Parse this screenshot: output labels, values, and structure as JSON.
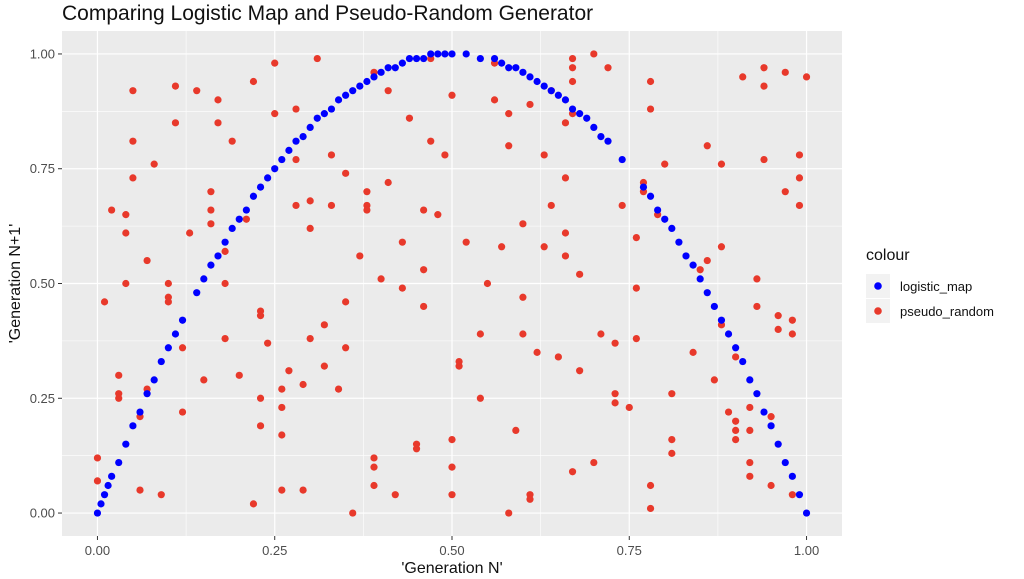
{
  "chart_data": {
    "type": "scatter",
    "title": "Comparing Logistic Map and Pseudo-Random Generator",
    "xlabel": "'Generation N'",
    "ylabel": "'Generation N+1'",
    "xlim": [
      -0.05,
      1.05
    ],
    "ylim": [
      -0.05,
      1.05
    ],
    "x_ticks": [
      0,
      0.25,
      0.5,
      0.75,
      1
    ],
    "x_tick_labels": [
      "0.00",
      "0.25",
      "0.50",
      "0.75",
      "1.00"
    ],
    "y_ticks": [
      0,
      0.25,
      0.5,
      0.75,
      1
    ],
    "y_tick_labels": [
      "0.00",
      "0.25",
      "0.50",
      "0.75",
      "1.00"
    ],
    "grid": true,
    "legend": {
      "title": "colour",
      "position": "right"
    },
    "series": [
      {
        "name": "logistic_map",
        "color": "#0000FF",
        "points": [
          [
            0.0,
            0.0
          ],
          [
            0.005,
            0.02
          ],
          [
            0.01,
            0.04
          ],
          [
            0.015,
            0.06
          ],
          [
            0.02,
            0.08
          ],
          [
            0.03,
            0.11
          ],
          [
            0.04,
            0.15
          ],
          [
            0.05,
            0.19
          ],
          [
            0.06,
            0.22
          ],
          [
            0.07,
            0.26
          ],
          [
            0.08,
            0.29
          ],
          [
            0.09,
            0.33
          ],
          [
            0.1,
            0.36
          ],
          [
            0.11,
            0.39
          ],
          [
            0.12,
            0.42
          ],
          [
            0.14,
            0.48
          ],
          [
            0.15,
            0.51
          ],
          [
            0.16,
            0.54
          ],
          [
            0.17,
            0.56
          ],
          [
            0.18,
            0.59
          ],
          [
            0.19,
            0.62
          ],
          [
            0.2,
            0.64
          ],
          [
            0.21,
            0.66
          ],
          [
            0.22,
            0.69
          ],
          [
            0.23,
            0.71
          ],
          [
            0.24,
            0.73
          ],
          [
            0.25,
            0.75
          ],
          [
            0.26,
            0.77
          ],
          [
            0.27,
            0.79
          ],
          [
            0.28,
            0.81
          ],
          [
            0.29,
            0.82
          ],
          [
            0.3,
            0.84
          ],
          [
            0.31,
            0.86
          ],
          [
            0.32,
            0.87
          ],
          [
            0.33,
            0.88
          ],
          [
            0.34,
            0.9
          ],
          [
            0.35,
            0.91
          ],
          [
            0.36,
            0.92
          ],
          [
            0.37,
            0.93
          ],
          [
            0.38,
            0.94
          ],
          [
            0.39,
            0.95
          ],
          [
            0.4,
            0.96
          ],
          [
            0.41,
            0.97
          ],
          [
            0.42,
            0.97
          ],
          [
            0.43,
            0.98
          ],
          [
            0.44,
            0.99
          ],
          [
            0.45,
            0.99
          ],
          [
            0.46,
            0.99
          ],
          [
            0.47,
            1.0
          ],
          [
            0.48,
            1.0
          ],
          [
            0.49,
            1.0
          ],
          [
            0.5,
            1.0
          ],
          [
            0.52,
            1.0
          ],
          [
            0.54,
            0.99
          ],
          [
            0.56,
            0.99
          ],
          [
            0.57,
            0.98
          ],
          [
            0.58,
            0.97
          ],
          [
            0.59,
            0.97
          ],
          [
            0.6,
            0.96
          ],
          [
            0.61,
            0.95
          ],
          [
            0.62,
            0.94
          ],
          [
            0.63,
            0.93
          ],
          [
            0.64,
            0.92
          ],
          [
            0.65,
            0.91
          ],
          [
            0.66,
            0.9
          ],
          [
            0.67,
            0.88
          ],
          [
            0.68,
            0.87
          ],
          [
            0.69,
            0.86
          ],
          [
            0.7,
            0.84
          ],
          [
            0.71,
            0.82
          ],
          [
            0.72,
            0.81
          ],
          [
            0.74,
            0.77
          ],
          [
            0.77,
            0.71
          ],
          [
            0.78,
            0.69
          ],
          [
            0.79,
            0.66
          ],
          [
            0.8,
            0.64
          ],
          [
            0.81,
            0.62
          ],
          [
            0.82,
            0.59
          ],
          [
            0.83,
            0.56
          ],
          [
            0.84,
            0.54
          ],
          [
            0.85,
            0.51
          ],
          [
            0.86,
            0.48
          ],
          [
            0.87,
            0.45
          ],
          [
            0.88,
            0.42
          ],
          [
            0.89,
            0.39
          ],
          [
            0.9,
            0.36
          ],
          [
            0.91,
            0.33
          ],
          [
            0.92,
            0.29
          ],
          [
            0.93,
            0.26
          ],
          [
            0.94,
            0.22
          ],
          [
            0.95,
            0.19
          ],
          [
            0.96,
            0.15
          ],
          [
            0.97,
            0.11
          ],
          [
            0.98,
            0.08
          ],
          [
            0.99,
            0.04
          ],
          [
            1.0,
            0.0
          ]
        ]
      },
      {
        "name": "pseudo_random",
        "color": "#E8392B",
        "points": [
          [
            0.0,
            0.12
          ],
          [
            0.0,
            0.07
          ],
          [
            0.01,
            0.46
          ],
          [
            0.02,
            0.66
          ],
          [
            0.03,
            0.26
          ],
          [
            0.03,
            0.3
          ],
          [
            0.03,
            0.25
          ],
          [
            0.04,
            0.5
          ],
          [
            0.04,
            0.61
          ],
          [
            0.04,
            0.65
          ],
          [
            0.05,
            0.73
          ],
          [
            0.05,
            0.81
          ],
          [
            0.05,
            0.92
          ],
          [
            0.06,
            0.05
          ],
          [
            0.06,
            0.21
          ],
          [
            0.07,
            0.27
          ],
          [
            0.07,
            0.55
          ],
          [
            0.08,
            0.76
          ],
          [
            0.09,
            0.04
          ],
          [
            0.1,
            0.5
          ],
          [
            0.1,
            0.47
          ],
          [
            0.1,
            0.46
          ],
          [
            0.11,
            0.85
          ],
          [
            0.11,
            0.93
          ],
          [
            0.12,
            0.22
          ],
          [
            0.12,
            0.36
          ],
          [
            0.13,
            0.61
          ],
          [
            0.14,
            0.92
          ],
          [
            0.15,
            0.29
          ],
          [
            0.16,
            0.63
          ],
          [
            0.16,
            0.66
          ],
          [
            0.16,
            0.7
          ],
          [
            0.17,
            0.85
          ],
          [
            0.17,
            0.9
          ],
          [
            0.18,
            0.38
          ],
          [
            0.18,
            0.57
          ],
          [
            0.18,
            0.5
          ],
          [
            0.19,
            0.81
          ],
          [
            0.2,
            0.3
          ],
          [
            0.21,
            0.64
          ],
          [
            0.22,
            0.94
          ],
          [
            0.22,
            0.02
          ],
          [
            0.23,
            0.43
          ],
          [
            0.23,
            0.44
          ],
          [
            0.23,
            0.25
          ],
          [
            0.23,
            0.19
          ],
          [
            0.24,
            0.37
          ],
          [
            0.25,
            0.87
          ],
          [
            0.25,
            0.98
          ],
          [
            0.26,
            0.05
          ],
          [
            0.26,
            0.17
          ],
          [
            0.26,
            0.23
          ],
          [
            0.26,
            0.27
          ],
          [
            0.27,
            0.31
          ],
          [
            0.28,
            0.67
          ],
          [
            0.28,
            0.77
          ],
          [
            0.28,
            0.88
          ],
          [
            0.29,
            0.05
          ],
          [
            0.29,
            0.28
          ],
          [
            0.3,
            0.38
          ],
          [
            0.3,
            0.62
          ],
          [
            0.3,
            0.68
          ],
          [
            0.31,
            0.99
          ],
          [
            0.32,
            0.32
          ],
          [
            0.32,
            0.41
          ],
          [
            0.33,
            0.67
          ],
          [
            0.33,
            0.78
          ],
          [
            0.34,
            0.27
          ],
          [
            0.35,
            0.36
          ],
          [
            0.35,
            0.46
          ],
          [
            0.35,
            0.74
          ],
          [
            0.36,
            0.0
          ],
          [
            0.37,
            0.56
          ],
          [
            0.38,
            0.67
          ],
          [
            0.38,
            0.7
          ],
          [
            0.38,
            0.66
          ],
          [
            0.39,
            0.06
          ],
          [
            0.39,
            0.1
          ],
          [
            0.39,
            0.12
          ],
          [
            0.39,
            0.96
          ],
          [
            0.4,
            0.51
          ],
          [
            0.41,
            0.72
          ],
          [
            0.41,
            0.92
          ],
          [
            0.42,
            0.04
          ],
          [
            0.43,
            0.49
          ],
          [
            0.43,
            0.59
          ],
          [
            0.44,
            0.86
          ],
          [
            0.45,
            0.14
          ],
          [
            0.45,
            0.15
          ],
          [
            0.46,
            0.45
          ],
          [
            0.46,
            0.53
          ],
          [
            0.46,
            0.66
          ],
          [
            0.47,
            0.81
          ],
          [
            0.47,
            0.99
          ],
          [
            0.48,
            0.65
          ],
          [
            0.49,
            0.78
          ],
          [
            0.5,
            0.04
          ],
          [
            0.5,
            0.1
          ],
          [
            0.5,
            0.16
          ],
          [
            0.5,
            0.91
          ],
          [
            0.51,
            0.32
          ],
          [
            0.51,
            0.33
          ],
          [
            0.52,
            0.59
          ],
          [
            0.54,
            0.25
          ],
          [
            0.54,
            0.39
          ],
          [
            0.55,
            0.5
          ],
          [
            0.56,
            0.9
          ],
          [
            0.56,
            0.98
          ],
          [
            0.57,
            0.58
          ],
          [
            0.58,
            0.0
          ],
          [
            0.58,
            0.8
          ],
          [
            0.58,
            0.87
          ],
          [
            0.59,
            0.18
          ],
          [
            0.6,
            0.39
          ],
          [
            0.6,
            0.47
          ],
          [
            0.6,
            0.63
          ],
          [
            0.61,
            0.89
          ],
          [
            0.61,
            0.04
          ],
          [
            0.61,
            0.03
          ],
          [
            0.62,
            0.35
          ],
          [
            0.63,
            0.58
          ],
          [
            0.63,
            0.78
          ],
          [
            0.64,
            0.67
          ],
          [
            0.64,
            0.92
          ],
          [
            0.65,
            0.34
          ],
          [
            0.66,
            0.56
          ],
          [
            0.66,
            0.61
          ],
          [
            0.66,
            0.73
          ],
          [
            0.66,
            0.85
          ],
          [
            0.67,
            0.87
          ],
          [
            0.67,
            0.94
          ],
          [
            0.67,
            0.97
          ],
          [
            0.67,
            0.99
          ],
          [
            0.67,
            0.09
          ],
          [
            0.68,
            0.31
          ],
          [
            0.68,
            0.52
          ],
          [
            0.7,
            0.11
          ],
          [
            0.7,
            1.0
          ],
          [
            0.71,
            0.39
          ],
          [
            0.72,
            0.97
          ],
          [
            0.73,
            0.37
          ],
          [
            0.73,
            0.24
          ],
          [
            0.73,
            0.26
          ],
          [
            0.74,
            0.67
          ],
          [
            0.75,
            0.23
          ],
          [
            0.76,
            0.38
          ],
          [
            0.76,
            0.49
          ],
          [
            0.76,
            0.6
          ],
          [
            0.77,
            0.7
          ],
          [
            0.77,
            0.72
          ],
          [
            0.78,
            0.88
          ],
          [
            0.78,
            0.94
          ],
          [
            0.78,
            0.06
          ],
          [
            0.78,
            0.01
          ],
          [
            0.79,
            0.65
          ],
          [
            0.8,
            0.76
          ],
          [
            0.81,
            0.16
          ],
          [
            0.81,
            0.13
          ],
          [
            0.81,
            0.26
          ],
          [
            0.84,
            0.35
          ],
          [
            0.85,
            0.53
          ],
          [
            0.86,
            0.55
          ],
          [
            0.86,
            0.8
          ],
          [
            0.87,
            0.29
          ],
          [
            0.88,
            0.41
          ],
          [
            0.88,
            0.58
          ],
          [
            0.88,
            0.76
          ],
          [
            0.89,
            0.22
          ],
          [
            0.9,
            0.2
          ],
          [
            0.9,
            0.18
          ],
          [
            0.9,
            0.16
          ],
          [
            0.9,
            0.34
          ],
          [
            0.91,
            0.95
          ],
          [
            0.92,
            0.08
          ],
          [
            0.92,
            0.11
          ],
          [
            0.92,
            0.18
          ],
          [
            0.92,
            0.23
          ],
          [
            0.93,
            0.45
          ],
          [
            0.93,
            0.51
          ],
          [
            0.94,
            0.77
          ],
          [
            0.94,
            0.93
          ],
          [
            0.94,
            0.97
          ],
          [
            0.95,
            0.06
          ],
          [
            0.95,
            0.21
          ],
          [
            0.96,
            0.4
          ],
          [
            0.96,
            0.43
          ],
          [
            0.97,
            0.7
          ],
          [
            0.97,
            0.96
          ],
          [
            0.98,
            0.04
          ],
          [
            0.98,
            0.42
          ],
          [
            0.98,
            0.39
          ],
          [
            0.99,
            0.67
          ],
          [
            0.99,
            0.73
          ],
          [
            0.99,
            0.78
          ],
          [
            1.0,
            0.95
          ]
        ]
      }
    ]
  }
}
